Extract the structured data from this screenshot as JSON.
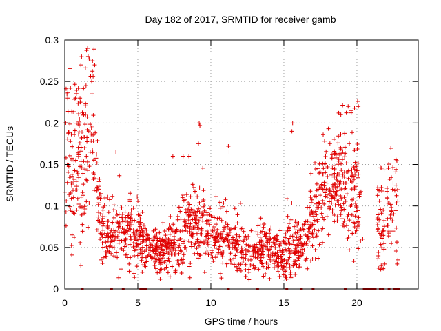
{
  "chart_data": {
    "type": "scatter",
    "title": "Day 182 of 2017, SRMTID for receiver gamb",
    "xlabel": "GPS time / hours",
    "ylabel": "SRMTID / TECUs",
    "xlim": [
      0,
      24.2
    ],
    "ylim": [
      0,
      0.3
    ],
    "x_ticks": [
      0,
      5,
      10,
      15,
      20
    ],
    "x_tick_labels": [
      "0",
      "5",
      "10",
      "15",
      "20"
    ],
    "y_ticks": [
      0,
      0.05,
      0.1,
      0.15,
      0.2,
      0.25,
      0.3
    ],
    "y_tick_labels": [
      "0",
      "0.05",
      "0.1",
      "0.15",
      "0.2",
      "0.25",
      "0.3"
    ],
    "grid": true,
    "marker": "plus",
    "series_color": "#e00000",
    "profile": [
      [
        0.0,
        0.14,
        0.05
      ],
      [
        0.5,
        0.15,
        0.05
      ],
      [
        1.0,
        0.16,
        0.055
      ],
      [
        1.5,
        0.18,
        0.06
      ],
      [
        1.8,
        0.2,
        0.06
      ],
      [
        2.0,
        0.17,
        0.05
      ],
      [
        2.3,
        0.1,
        0.03
      ],
      [
        2.6,
        0.08,
        0.025
      ],
      [
        3.0,
        0.06,
        0.02
      ],
      [
        3.5,
        0.06,
        0.02
      ],
      [
        4.0,
        0.07,
        0.02
      ],
      [
        4.5,
        0.07,
        0.02
      ],
      [
        5.0,
        0.07,
        0.02
      ],
      [
        5.5,
        0.05,
        0.015
      ],
      [
        6.0,
        0.045,
        0.015
      ],
      [
        6.5,
        0.045,
        0.015
      ],
      [
        7.0,
        0.05,
        0.015
      ],
      [
        7.5,
        0.05,
        0.015
      ],
      [
        8.0,
        0.07,
        0.02
      ],
      [
        8.5,
        0.075,
        0.02
      ],
      [
        9.0,
        0.08,
        0.025
      ],
      [
        9.5,
        0.08,
        0.025
      ],
      [
        10.0,
        0.065,
        0.02
      ],
      [
        10.5,
        0.06,
        0.02
      ],
      [
        11.0,
        0.06,
        0.02
      ],
      [
        11.5,
        0.05,
        0.015
      ],
      [
        12.0,
        0.05,
        0.015
      ],
      [
        12.5,
        0.045,
        0.015
      ],
      [
        13.0,
        0.045,
        0.015
      ],
      [
        13.5,
        0.05,
        0.015
      ],
      [
        14.0,
        0.05,
        0.015
      ],
      [
        14.5,
        0.045,
        0.015
      ],
      [
        15.0,
        0.04,
        0.015
      ],
      [
        15.5,
        0.06,
        0.03
      ],
      [
        16.0,
        0.05,
        0.015
      ],
      [
        16.5,
        0.06,
        0.02
      ],
      [
        17.0,
        0.08,
        0.03
      ],
      [
        17.5,
        0.11,
        0.035
      ],
      [
        18.0,
        0.13,
        0.03
      ],
      [
        18.5,
        0.13,
        0.03
      ],
      [
        19.0,
        0.13,
        0.035
      ],
      [
        19.5,
        0.12,
        0.035
      ],
      [
        20.0,
        0.11,
        0.04
      ],
      [
        20.3,
        0.09,
        0.03
      ]
    ],
    "gaps": [
      [
        20.3,
        21.3
      ],
      [
        22.9,
        24.2
      ]
    ],
    "late_clusters": [
      [
        21.4,
        21.9,
        0.08,
        0.03
      ],
      [
        22.0,
        22.8,
        0.1,
        0.03
      ]
    ],
    "extreme_points": [
      [
        2.0,
        0.289
      ],
      [
        1.9,
        0.275
      ],
      [
        2.05,
        0.27
      ],
      [
        1.15,
        0.28
      ],
      [
        1.1,
        0.27
      ],
      [
        0.15,
        0.235
      ],
      [
        0.2,
        0.23
      ],
      [
        9.2,
        0.2
      ],
      [
        9.25,
        0.197
      ],
      [
        9.15,
        0.175
      ],
      [
        11.2,
        0.172
      ],
      [
        11.25,
        0.165
      ],
      [
        15.6,
        0.2
      ],
      [
        15.55,
        0.19
      ],
      [
        18.9,
        0.21
      ],
      [
        19.4,
        0.22
      ],
      [
        19.6,
        0.215
      ],
      [
        20.05,
        0.226
      ],
      [
        20.1,
        0.22
      ],
      [
        3.5,
        0.165
      ],
      [
        7.4,
        0.16
      ],
      [
        8.1,
        0.16
      ],
      [
        8.5,
        0.16
      ],
      [
        0.5,
        0.065
      ],
      [
        4.4,
        0.03
      ],
      [
        5.3,
        0.02
      ],
      [
        6.5,
        0.02
      ],
      [
        12.6,
        0.02
      ],
      [
        13.8,
        0.025
      ],
      [
        14.7,
        0.015
      ],
      [
        21.5,
        0.025
      ],
      [
        21.9,
        0.03
      ],
      [
        22.75,
        0.03
      ],
      [
        22.8,
        0.035
      ],
      [
        20.4,
        0.06
      ]
    ],
    "baseline_markers": [
      1.2,
      3.2,
      4.0,
      5.2,
      5.35,
      5.45,
      5.55,
      7.3,
      9.2,
      11.2,
      13.2,
      15.2,
      16.2,
      17.0,
      19.2,
      20.5,
      20.65,
      20.8,
      20.95,
      21.1,
      21.25,
      21.6,
      21.8,
      22.2,
      22.55,
      22.7,
      22.85
    ],
    "point_count": 1550
  }
}
